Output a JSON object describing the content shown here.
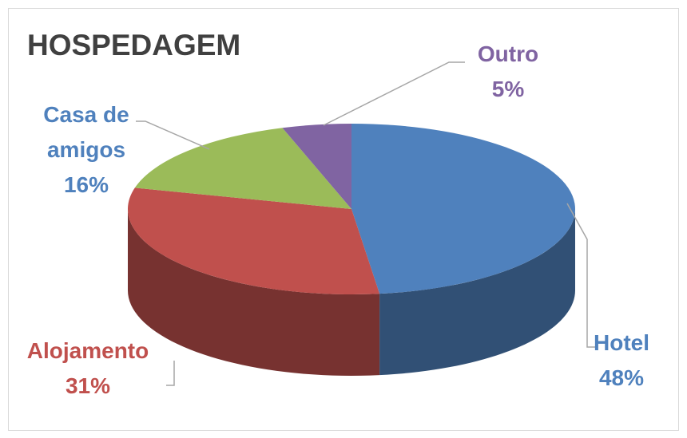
{
  "chart_data": {
    "type": "pie3d",
    "title": "HOSPEDAGEM",
    "categories": [
      "Hotel",
      "Alojamento",
      "Casa de amigos",
      "Outro"
    ],
    "values": [
      48,
      31,
      16,
      5
    ],
    "value_labels": [
      "48%",
      "31%",
      "16%",
      "5%"
    ],
    "colors": [
      "#4f81bd",
      "#c0504d",
      "#9bbb59",
      "#8064a2"
    ],
    "label_colors": [
      "#4f81bd",
      "#c0504d",
      "#4f81bd",
      "#8064a2"
    ]
  }
}
